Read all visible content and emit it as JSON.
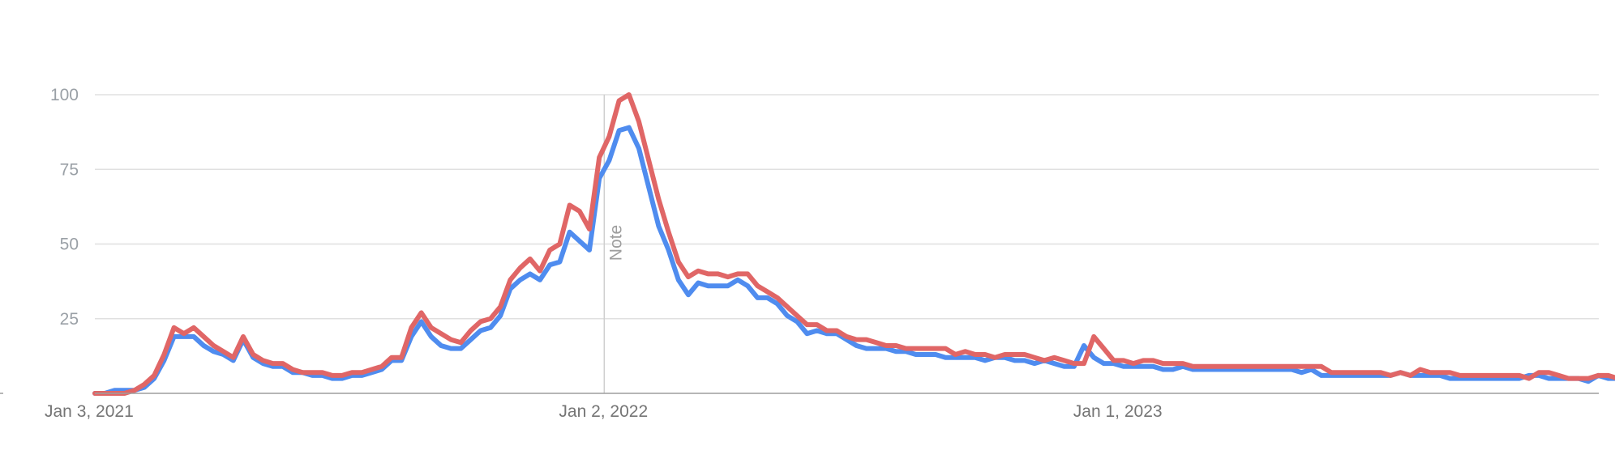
{
  "chart_data": {
    "type": "line",
    "title": "",
    "xlabel": "",
    "ylabel": "",
    "ylim": [
      0,
      100
    ],
    "y_ticks": [
      "25",
      "50",
      "75",
      "100"
    ],
    "y_tick_values": [
      25,
      50,
      75,
      100
    ],
    "x_tick_labels": [
      "Jan 3, 2021",
      "Jan 2, 2022",
      "Jan 1, 2023"
    ],
    "x_tick_weeks": [
      0,
      52,
      104
    ],
    "note": {
      "label": "Note",
      "week": 51.5
    },
    "grid": true,
    "legend": "none",
    "x_start": "2021-01-03",
    "x_interval": "weekly",
    "series": [
      {
        "color": "#4f8cef",
        "values": [
          0,
          0,
          1,
          1,
          1,
          2,
          5,
          11,
          19,
          19,
          19,
          16,
          14,
          13,
          11,
          18,
          12,
          10,
          9,
          9,
          7,
          7,
          6,
          6,
          5,
          5,
          6,
          6,
          7,
          8,
          11,
          11,
          19,
          24,
          19,
          16,
          15,
          15,
          18,
          21,
          22,
          26,
          35,
          38,
          40,
          38,
          43,
          44,
          54,
          51,
          48,
          72,
          78,
          88,
          89,
          82,
          69,
          56,
          48,
          38,
          33,
          37,
          36,
          36,
          36,
          38,
          36,
          32,
          32,
          30,
          26,
          24,
          20,
          21,
          20,
          20,
          18,
          16,
          15,
          15,
          15,
          14,
          14,
          13,
          13,
          13,
          12,
          12,
          12,
          12,
          11,
          12,
          12,
          11,
          11,
          10,
          11,
          10,
          9,
          9,
          16,
          12,
          10,
          10,
          9,
          9,
          9,
          9,
          8,
          8,
          9,
          8,
          8,
          8,
          8,
          8,
          8,
          8,
          8,
          8,
          8,
          8,
          7,
          8,
          6,
          6,
          6,
          6,
          6,
          6,
          6,
          6,
          7,
          6,
          6,
          6,
          6,
          5,
          5,
          5,
          5,
          5,
          5,
          5,
          5,
          6,
          6,
          5,
          5,
          5,
          5,
          4,
          6,
          5,
          5
        ]
      },
      {
        "color": "#e06666",
        "values": [
          0,
          0,
          0,
          0,
          1,
          3,
          6,
          13,
          22,
          20,
          22,
          19,
          16,
          14,
          12,
          19,
          13,
          11,
          10,
          10,
          8,
          7,
          7,
          7,
          6,
          6,
          7,
          7,
          8,
          9,
          12,
          12,
          22,
          27,
          22,
          20,
          18,
          17,
          21,
          24,
          25,
          29,
          38,
          42,
          45,
          41,
          48,
          50,
          63,
          61,
          55,
          79,
          86,
          98,
          100,
          91,
          78,
          65,
          54,
          44,
          39,
          41,
          40,
          40,
          39,
          40,
          40,
          36,
          34,
          32,
          29,
          26,
          23,
          23,
          21,
          21,
          19,
          18,
          18,
          17,
          16,
          16,
          15,
          15,
          15,
          15,
          15,
          13,
          14,
          13,
          13,
          12,
          13,
          13,
          13,
          12,
          11,
          12,
          11,
          10,
          10,
          19,
          15,
          11,
          11,
          10,
          11,
          11,
          10,
          10,
          10,
          9,
          9,
          9,
          9,
          9,
          9,
          9,
          9,
          9,
          9,
          9,
          9,
          9,
          9,
          7,
          7,
          7,
          7,
          7,
          7,
          6,
          7,
          6,
          8,
          7,
          7,
          7,
          6,
          6,
          6,
          6,
          6,
          6,
          6,
          5,
          7,
          7,
          6,
          5,
          5,
          5,
          6,
          6,
          5,
          5
        ]
      }
    ]
  }
}
